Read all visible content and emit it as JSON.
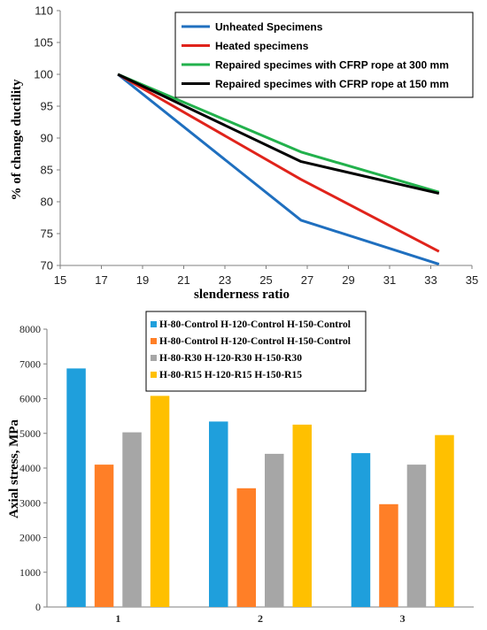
{
  "colors": {
    "blue": "#1f6fbf",
    "red": "#e0231b",
    "green": "#22b14c",
    "black": "#000000",
    "bar_blue": "#1f9fdc",
    "bar_orange": "#ff7f27",
    "bar_gray": "#a6a6a6",
    "bar_gold": "#ffc000"
  },
  "chart_data": [
    {
      "type": "line",
      "xlabel": "slenderness ratio",
      "ylabel": "% of change ductility",
      "xlim": [
        15,
        35
      ],
      "ylim": [
        70,
        110
      ],
      "xticks": [
        15,
        17,
        19,
        21,
        23,
        25,
        27,
        29,
        31,
        33,
        35
      ],
      "yticks": [
        70,
        75,
        80,
        85,
        90,
        95,
        100,
        105,
        110
      ],
      "grid": false,
      "legend_position": "top-right",
      "series": [
        {
          "name": "Unheated Specimens",
          "color": "#1f6fbf",
          "points": [
            [
              17.8,
              100
            ],
            [
              26.7,
              77.1
            ],
            [
              33.4,
              70.2
            ]
          ]
        },
        {
          "name": "Heated specimens",
          "color": "#e0231b",
          "points": [
            [
              17.8,
              100
            ],
            [
              26.7,
              83.5
            ],
            [
              33.4,
              72.2
            ]
          ]
        },
        {
          "name": "Repaired specimes with CFRP rope at 300 mm",
          "color": "#22b14c",
          "points": [
            [
              17.8,
              100
            ],
            [
              26.7,
              87.8
            ],
            [
              33.4,
              81.5
            ]
          ]
        },
        {
          "name": "Repaired specimes with CFRP rope at 150 mm",
          "color": "#000000",
          "points": [
            [
              17.8,
              100
            ],
            [
              26.7,
              86.3
            ],
            [
              33.4,
              81.3
            ]
          ]
        }
      ]
    },
    {
      "type": "bar",
      "ylabel": "Axial stress, MPa",
      "categories": [
        "1",
        "2",
        "3"
      ],
      "ylim": [
        0,
        8000
      ],
      "yticks": [
        0,
        1000,
        2000,
        3000,
        4000,
        5000,
        6000,
        7000,
        8000
      ],
      "grid": false,
      "legend_position": "top-center",
      "series": [
        {
          "name": "H-80-Control H-120-Control H-150-Control",
          "color": "#1f9fdc",
          "values": [
            6870,
            5340,
            4430
          ]
        },
        {
          "name": "H-80-Control H-120-Control H-150-Control",
          "color": "#ff7f27",
          "values": [
            4100,
            3420,
            2960
          ]
        },
        {
          "name": "H-80-R30 H-120-R30 H-150-R30",
          "color": "#a6a6a6",
          "values": [
            5030,
            4410,
            4100
          ]
        },
        {
          "name": "H-80-R15 H-120-R15 H-150-R15",
          "color": "#ffc000",
          "values": [
            6080,
            5250,
            4950
          ]
        }
      ]
    }
  ]
}
